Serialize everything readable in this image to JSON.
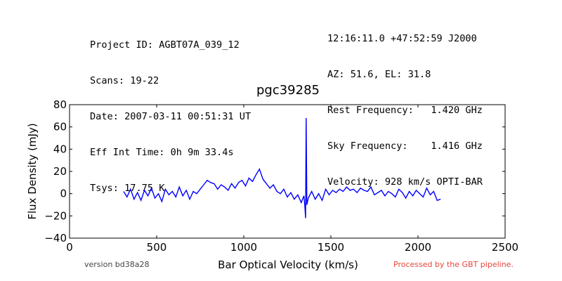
{
  "header": {
    "left_lines": [
      "Project ID: AGBT07A_039_12",
      "Scans: 19-22",
      "Date: 2007-03-11 00:51:31 UT",
      "Eff Int Time: 0h 9m 33.4s",
      "Tsys: 17.75 K"
    ],
    "right_lines": [
      "12:16:11.0 +47:52:59 J2000",
      "AZ: 51.6, EL: 31.8",
      "Rest Frequency:   1.420 GHz",
      "Sky Frequency:    1.416 GHz",
      "Velocity: 928 km/s OPTI-BAR"
    ]
  },
  "footer": {
    "version": "version bd38a28",
    "pipeline": "Processed by the GBT pipeline.",
    "pipeline_color": "#e8463c"
  },
  "chart_data": {
    "type": "line",
    "title": "pgc39285",
    "xlabel": "Bar Optical Velocity (km/s)",
    "ylabel": "Flux Density (mJy)",
    "xlim": [
      0,
      2500
    ],
    "ylim": [
      -40,
      80
    ],
    "xticks": [
      0,
      500,
      1000,
      1500,
      2000,
      2500
    ],
    "yticks": [
      -40,
      -20,
      0,
      20,
      40,
      60,
      80
    ],
    "grid": false,
    "series": [
      {
        "color": "#0000ff",
        "x": [
          310,
          330,
          350,
          370,
          390,
          410,
          430,
          450,
          470,
          490,
          510,
          530,
          550,
          570,
          590,
          610,
          630,
          650,
          670,
          690,
          710,
          730,
          750,
          770,
          790,
          810,
          830,
          850,
          870,
          890,
          910,
          930,
          950,
          970,
          990,
          1010,
          1030,
          1050,
          1070,
          1090,
          1110,
          1130,
          1150,
          1170,
          1190,
          1210,
          1230,
          1250,
          1270,
          1290,
          1310,
          1330,
          1345,
          1350,
          1355,
          1358,
          1362,
          1370,
          1390,
          1410,
          1430,
          1450,
          1470,
          1490,
          1510,
          1530,
          1550,
          1570,
          1590,
          1610,
          1630,
          1650,
          1670,
          1690,
          1710,
          1730,
          1750,
          1770,
          1790,
          1810,
          1830,
          1850,
          1870,
          1890,
          1910,
          1930,
          1950,
          1970,
          1990,
          2010,
          2030,
          2050,
          2070,
          2090,
          2110,
          2130
        ],
        "y": [
          2,
          -3,
          4,
          -5,
          1,
          -6,
          3,
          -2,
          5,
          -4,
          0,
          -7,
          4,
          -1,
          2,
          -3,
          6,
          -2,
          3,
          -5,
          2,
          0,
          4,
          8,
          12,
          10,
          9,
          4,
          8,
          6,
          3,
          9,
          5,
          10,
          12,
          7,
          14,
          11,
          17,
          22,
          13,
          9,
          5,
          8,
          2,
          0,
          4,
          -3,
          1,
          -5,
          -1,
          -8,
          -2,
          -10,
          -22,
          68,
          -10,
          -4,
          2,
          -5,
          0,
          -6,
          4,
          -1,
          3,
          1,
          4,
          2,
          6,
          3,
          4,
          1,
          5,
          3,
          2,
          6,
          -1,
          1,
          3,
          -2,
          2,
          0,
          -3,
          4,
          1,
          -4,
          2,
          -2,
          3,
          0,
          -3,
          5,
          -1,
          2,
          -6,
          -5
        ]
      }
    ]
  }
}
